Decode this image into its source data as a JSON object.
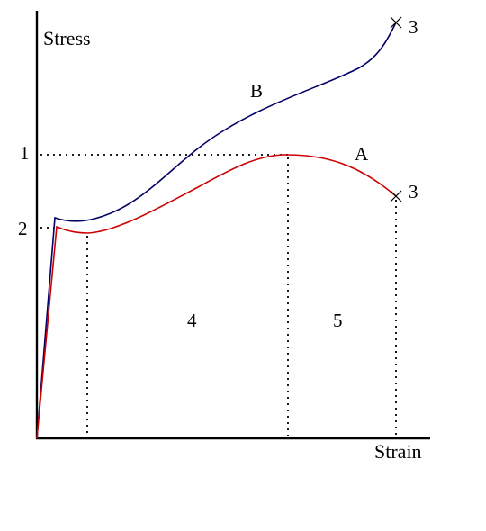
{
  "axes": {
    "x_label": "Strain",
    "y_label": "Stress"
  },
  "curves": [
    {
      "id": "A",
      "label": "A",
      "color": "#cc0000"
    },
    {
      "id": "B",
      "label": "B",
      "color": "#000066"
    }
  ],
  "markers": {
    "level_1": "1",
    "level_2": "2",
    "fracture_label": "3",
    "region_4": "4",
    "region_5": "5"
  },
  "colors": {
    "axis": "#000000",
    "guide": "#000000"
  }
}
